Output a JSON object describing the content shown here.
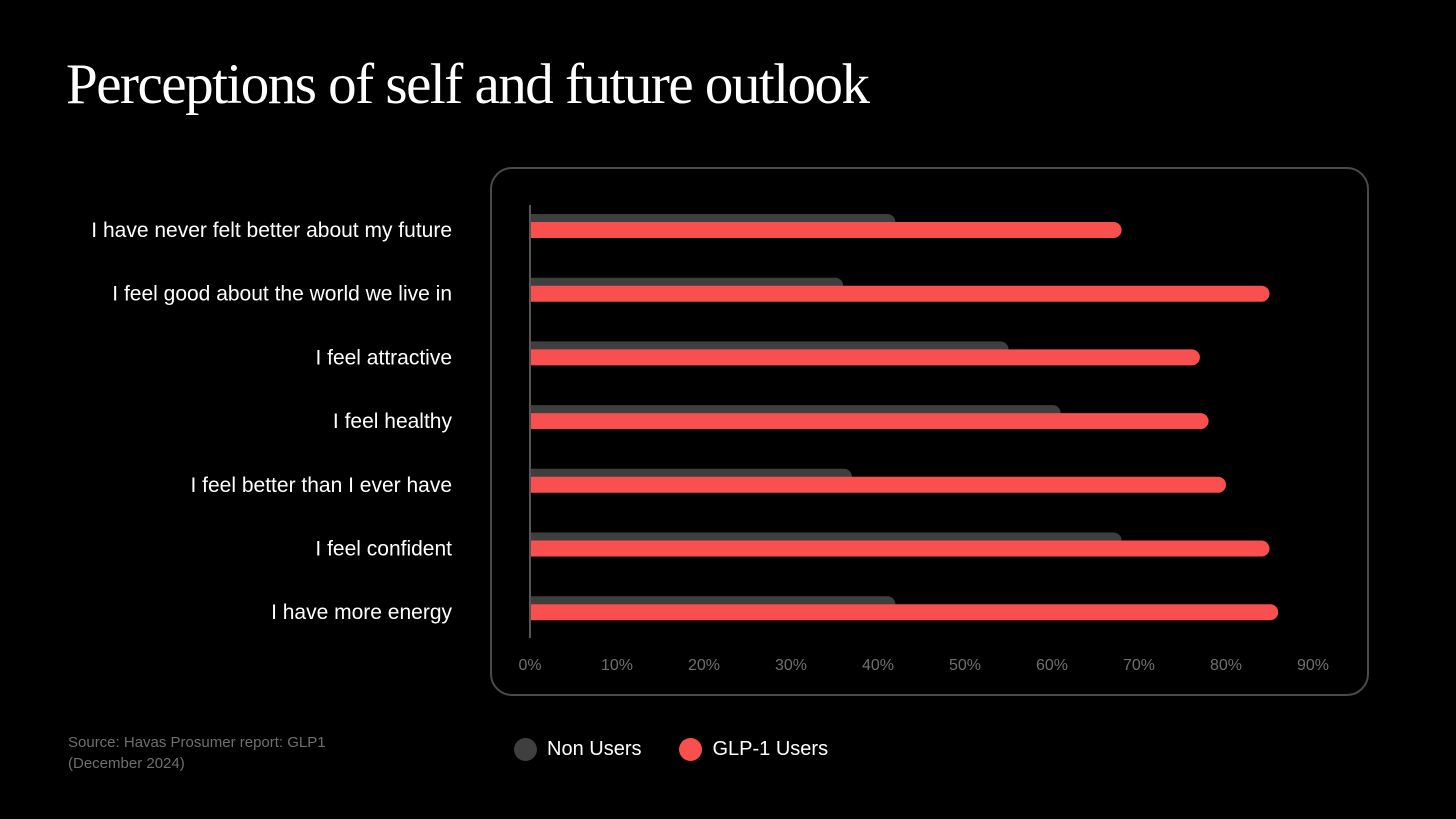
{
  "chart_data": {
    "type": "bar",
    "orientation": "horizontal",
    "title": "Perceptions of self and future outlook",
    "categories": [
      "I have never felt better about my future",
      "I feel good about the world we live in",
      "I feel attractive",
      "I feel healthy",
      "I feel better than I ever have",
      "I feel confident",
      "I have more energy"
    ],
    "series": [
      {
        "name": "Non Users",
        "color": "#3f3f3f",
        "values": [
          42,
          36,
          55,
          61,
          37,
          68,
          42
        ]
      },
      {
        "name": "GLP-1 Users",
        "color": "#f94f4f",
        "values": [
          68,
          85,
          77,
          78,
          80,
          85,
          86
        ]
      }
    ],
    "xlim": [
      0,
      90
    ],
    "xticks": [
      "0%",
      "10%",
      "20%",
      "30%",
      "40%",
      "50%",
      "60%",
      "70%",
      "80%",
      "90%"
    ],
    "grid": false,
    "legend": "bottom"
  },
  "source": {
    "line1": "Source: Havas Prosumer report: GLP1",
    "line2": "(December 2024)"
  }
}
